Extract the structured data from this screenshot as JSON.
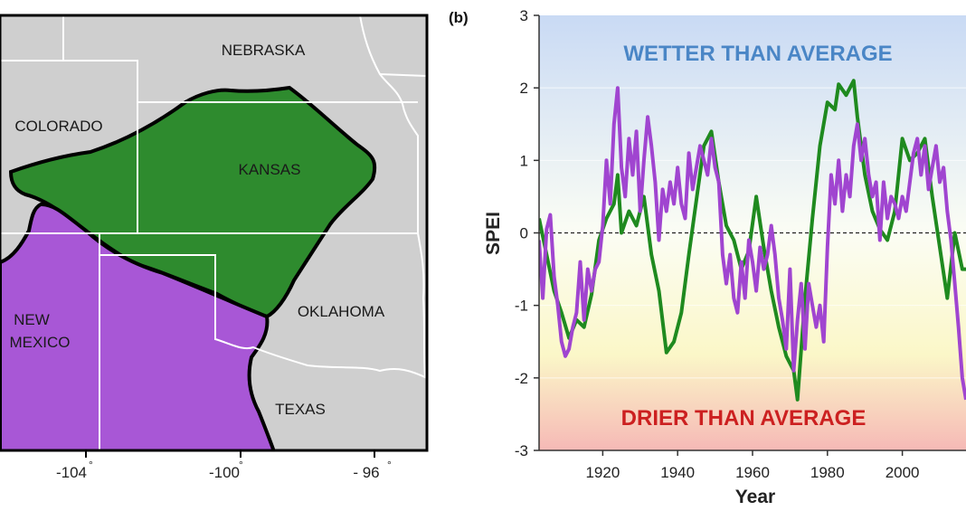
{
  "map": {
    "states": [
      "NEBRASKA",
      "COLORADO",
      "KANSAS",
      "NEW",
      "MEXICO",
      "OKLAHOMA",
      "TEXAS"
    ],
    "longitude_ticks": [
      "-104",
      "-100",
      "- 96"
    ],
    "degree_symbol": "°",
    "colors": {
      "land": "#cfcfcf",
      "green_region": "#2e8b2e",
      "purple_region": "#a857d6",
      "borders": "#ffffff"
    }
  },
  "panel_letter": "(b)",
  "chart_data": {
    "type": "line",
    "xlabel": "Year",
    "ylabel": "SPEI",
    "xlim": [
      1903,
      2017
    ],
    "ylim": [
      -3,
      3
    ],
    "xticks": [
      1920,
      1940,
      1960,
      1980,
      2000
    ],
    "yticks": [
      3,
      2,
      1,
      0,
      -1,
      -2,
      -3
    ],
    "zero_line": "dashed",
    "grid": false,
    "annotations": {
      "wet": "WETTER THAN AVERAGE",
      "dry": "DRIER THAN AVERAGE"
    },
    "colors": {
      "wet": "#4a86c6",
      "dry": "#cc2020"
    },
    "series": [
      {
        "color": "#1f8a1f",
        "x": [
          1903,
          1905,
          1907,
          1909,
          1911,
          1913,
          1915,
          1917,
          1919,
          1921,
          1923,
          1924,
          1925,
          1927,
          1929,
          1931,
          1933,
          1935,
          1937,
          1939,
          1941,
          1943,
          1945,
          1947,
          1949,
          1951,
          1953,
          1955,
          1957,
          1959,
          1961,
          1963,
          1965,
          1967,
          1969,
          1971,
          1972,
          1974,
          1976,
          1978,
          1980,
          1982,
          1983,
          1985,
          1987,
          1988,
          1990,
          1992,
          1994,
          1996,
          1998,
          2000,
          2002,
          2004,
          2006,
          2008,
          2010,
          2012,
          2014,
          2016,
          2017
        ],
        "y": [
          0.2,
          -0.3,
          -0.8,
          -1.1,
          -1.45,
          -1.2,
          -1.3,
          -0.85,
          -0.1,
          0.2,
          0.4,
          0.8,
          0.0,
          0.3,
          0.1,
          0.5,
          -0.3,
          -0.8,
          -1.65,
          -1.5,
          -1.1,
          -0.3,
          0.45,
          1.2,
          1.4,
          0.7,
          0.1,
          -0.1,
          -0.5,
          -0.25,
          0.5,
          -0.2,
          -0.8,
          -1.3,
          -1.7,
          -1.9,
          -2.3,
          -0.9,
          0.2,
          1.2,
          1.8,
          1.7,
          2.05,
          1.9,
          2.1,
          1.6,
          0.8,
          0.3,
          0.05,
          -0.1,
          0.3,
          1.3,
          1.0,
          1.1,
          1.3,
          0.5,
          -0.2,
          -0.9,
          0.0,
          -0.5,
          -0.5
        ]
      },
      {
        "color": "#a045d0",
        "x": [
          1903,
          1904,
          1905,
          1906,
          1907,
          1908,
          1909,
          1910,
          1911,
          1912,
          1913,
          1914,
          1915,
          1916,
          1917,
          1918,
          1919,
          1920,
          1921,
          1922,
          1923,
          1924,
          1925,
          1926,
          1927,
          1928,
          1929,
          1930,
          1931,
          1932,
          1933,
          1934,
          1935,
          1936,
          1937,
          1938,
          1939,
          1940,
          1941,
          1942,
          1943,
          1944,
          1945,
          1946,
          1947,
          1948,
          1949,
          1950,
          1951,
          1952,
          1953,
          1954,
          1955,
          1956,
          1957,
          1958,
          1959,
          1960,
          1961,
          1962,
          1963,
          1964,
          1965,
          1966,
          1967,
          1968,
          1969,
          1970,
          1971,
          1972,
          1973,
          1974,
          1975,
          1976,
          1977,
          1978,
          1979,
          1980,
          1981,
          1982,
          1983,
          1984,
          1985,
          1986,
          1987,
          1988,
          1989,
          1990,
          1991,
          1992,
          1993,
          1994,
          1995,
          1996,
          1997,
          1998,
          1999,
          2000,
          2001,
          2002,
          2003,
          2004,
          2005,
          2006,
          2007,
          2008,
          2009,
          2010,
          2011,
          2012,
          2013,
          2014,
          2015,
          2016,
          2017
        ],
        "y": [
          -0.1,
          -0.9,
          0.05,
          0.25,
          -0.6,
          -1.0,
          -1.5,
          -1.7,
          -1.6,
          -1.3,
          -1.1,
          -0.4,
          -1.2,
          -0.5,
          -0.8,
          -0.5,
          -0.4,
          0.1,
          1.0,
          0.4,
          1.5,
          2.0,
          0.9,
          0.5,
          1.3,
          0.8,
          1.4,
          0.3,
          1.0,
          1.6,
          1.2,
          0.7,
          -0.1,
          0.6,
          0.3,
          0.7,
          0.4,
          0.9,
          0.4,
          0.2,
          1.1,
          0.6,
          0.9,
          1.2,
          1.0,
          0.8,
          1.3,
          0.9,
          0.7,
          -0.3,
          -0.7,
          -0.3,
          -0.9,
          -1.1,
          -0.4,
          -0.9,
          -0.1,
          -0.4,
          -0.8,
          -0.2,
          -0.5,
          -0.3,
          0.1,
          -0.3,
          -0.9,
          -1.2,
          -1.6,
          -0.5,
          -1.9,
          -1.2,
          -0.7,
          -1.6,
          -0.7,
          -1.0,
          -1.3,
          -1.0,
          -1.5,
          -0.2,
          0.8,
          0.4,
          1.0,
          0.3,
          0.8,
          0.5,
          1.2,
          1.5,
          1.0,
          1.3,
          0.8,
          0.5,
          0.7,
          -0.1,
          0.7,
          0.2,
          0.5,
          0.4,
          0.2,
          0.5,
          0.3,
          0.7,
          1.1,
          1.3,
          0.8,
          1.2,
          0.6,
          0.9,
          1.2,
          0.7,
          0.9,
          0.3,
          -0.1,
          -0.7,
          -1.3,
          -2.0,
          -2.3
        ]
      }
    ]
  }
}
